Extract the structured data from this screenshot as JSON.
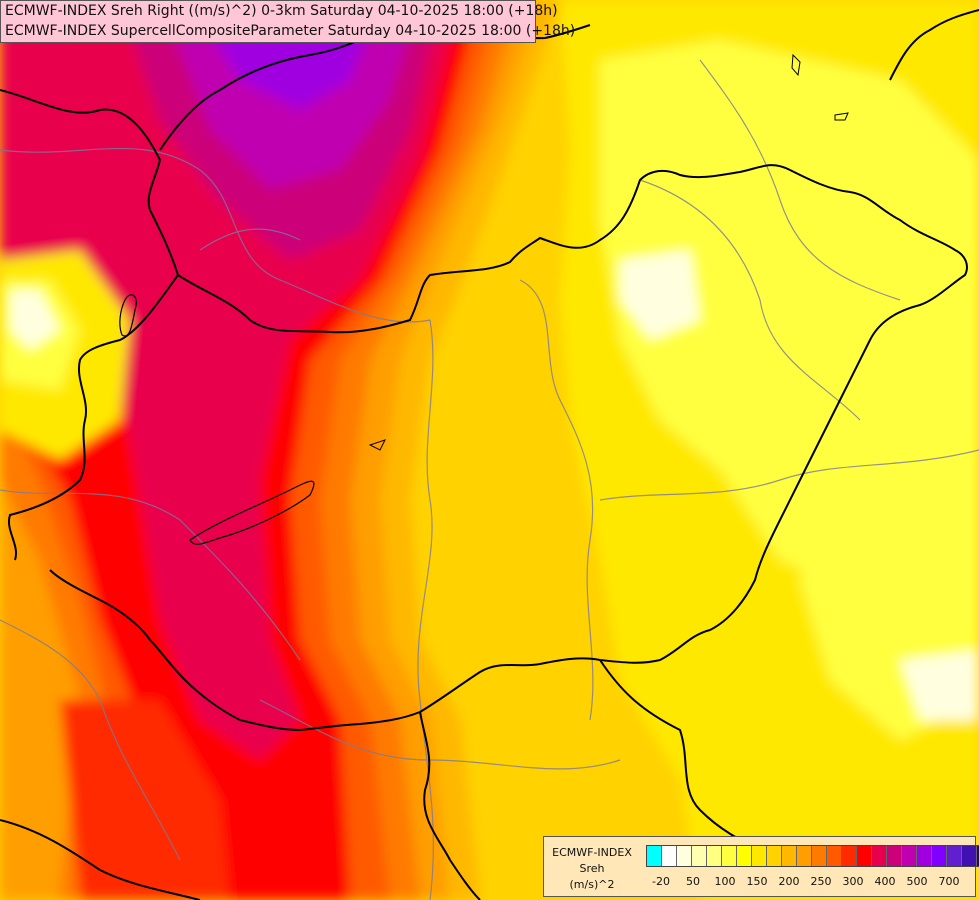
{
  "header": {
    "title_line_1": "ECMWF-INDEX Sreh Right ((m/s)^2) 0-3km Saturday 04-10-2025 18:00 (+18h)",
    "title_line_2": "ECMWF-INDEX SupercellCompositeParameter Saturday 04-10-2025 18:00 (+18h)"
  },
  "legend": {
    "line_1": "ECMWF-INDEX",
    "line_2": "Sreh",
    "line_3": "(m/s)^2",
    "tick_labels": [
      "-20",
      "50",
      "100",
      "150",
      "200",
      "250",
      "300",
      "400",
      "500",
      "700"
    ],
    "colors": [
      "#00ffff",
      "#ffffff",
      "#ffffe0",
      "#ffffb0",
      "#ffff80",
      "#ffff40",
      "#ffff00",
      "#ffe800",
      "#ffd200",
      "#ffb800",
      "#ff9e00",
      "#ff7a00",
      "#ff5a00",
      "#ff2a00",
      "#ff0000",
      "#e8004e",
      "#cc0078",
      "#c000b0",
      "#a000e0",
      "#8000ff",
      "#6020d0",
      "#4010b0",
      "#200090",
      "#000080"
    ]
  },
  "map": {
    "shading_colors": {
      "background": "#ffd200",
      "light_yellow": "#ffff40",
      "yellow": "#ffe800",
      "orange_light": "#ffb800",
      "orange": "#ff9e00",
      "orange_dark": "#ff7a00",
      "red_orange": "#ff5a00",
      "red_light": "#ff2a00",
      "red": "#ff0000",
      "crimson": "#e8004e",
      "magenta": "#cc0078",
      "violet": "#c000b0",
      "purple": "#a000e0",
      "pale": "#ffffe0"
    },
    "border_color": "#000000",
    "river_color": "#7a7a9a"
  }
}
